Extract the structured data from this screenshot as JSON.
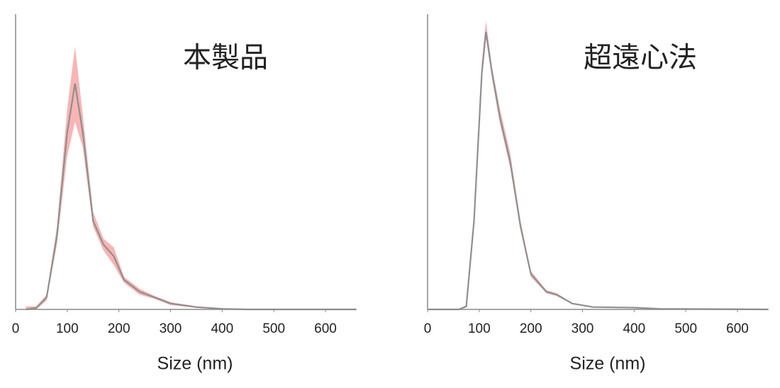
{
  "chart_data": [
    {
      "type": "line",
      "title": "本製品",
      "x_label": "Size (nm)",
      "x": [
        20,
        40,
        60,
        80,
        100,
        115,
        130,
        150,
        170,
        190,
        210,
        240,
        270,
        300,
        350,
        400,
        450,
        500,
        660
      ],
      "values": [
        0,
        0.5,
        4,
        25,
        60,
        76.5,
        60,
        30,
        22,
        18,
        10,
        6,
        4,
        2,
        0.8,
        0.2,
        0,
        0,
        0
      ],
      "lower": [
        0,
        0,
        3,
        22,
        52,
        63.5,
        55,
        28,
        20,
        15,
        9,
        5,
        3.5,
        1.5,
        0.5,
        0,
        0,
        0,
        0
      ],
      "upper": [
        1,
        1,
        5,
        28,
        68,
        89,
        66,
        33,
        24,
        21,
        11,
        7,
        4.5,
        2.5,
        1,
        0.4,
        0,
        0,
        0
      ],
      "color": "#8f8f8f",
      "band_color": "#f9b4b4",
      "xlim": [
        0,
        660
      ],
      "ylim": [
        0,
        100
      ],
      "xticks": [
        0,
        100,
        200,
        300,
        400,
        500,
        600
      ]
    },
    {
      "type": "line",
      "title": "超遠心法",
      "x_label": "Size (nm)",
      "x": [
        0,
        60,
        75,
        90,
        105,
        113,
        125,
        140,
        160,
        180,
        200,
        230,
        250,
        280,
        320,
        400,
        450,
        660
      ],
      "values": [
        0,
        0,
        1,
        30,
        80,
        94,
        80,
        65,
        50,
        28,
        12,
        6,
        5,
        2,
        0.8,
        0.6,
        0.2,
        0
      ],
      "lower": [
        0,
        0,
        1,
        29,
        78,
        92,
        78,
        63,
        48,
        27,
        11,
        5.5,
        4.5,
        1.8,
        0.7,
        0.5,
        0.1,
        0
      ],
      "upper": [
        0,
        0,
        1.5,
        32,
        84,
        97.6,
        82,
        68,
        53,
        30,
        13,
        6.5,
        5.5,
        2.2,
        0.9,
        0.7,
        0.3,
        0
      ],
      "color": "#8f8f8f",
      "band_color": "#f9b4b4",
      "xlim": [
        0,
        660
      ],
      "ylim": [
        0,
        100
      ],
      "xticks": [
        0,
        100,
        200,
        300,
        400,
        500,
        600
      ]
    }
  ]
}
